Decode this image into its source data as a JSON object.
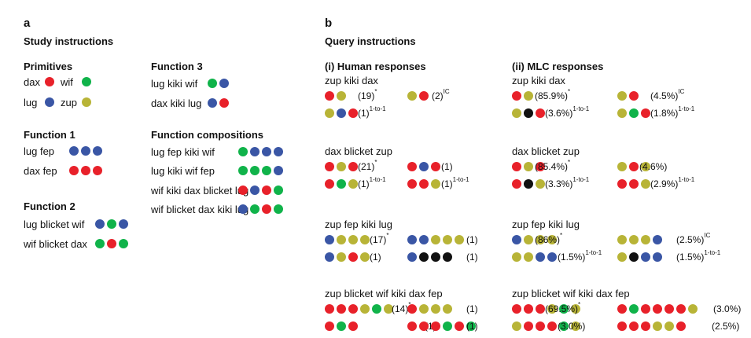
{
  "colors": {
    "red": "#e8212a",
    "green": "#10b34a",
    "blue": "#3a56a5",
    "yellow": "#b8b437",
    "black": "#111111"
  },
  "panel_a": {
    "letter": "a",
    "title": "Study instructions",
    "primitives": {
      "title": "Primitives",
      "items": [
        {
          "word": "dax",
          "color": "red"
        },
        {
          "word": "wif",
          "color": "green"
        },
        {
          "word": "lug",
          "color": "blue"
        },
        {
          "word": "zup",
          "color": "yellow"
        }
      ]
    },
    "function1": {
      "title": "Function 1",
      "rows": [
        {
          "text": "lug fep",
          "dots": [
            "blue",
            "blue",
            "blue"
          ]
        },
        {
          "text": "dax fep",
          "dots": [
            "red",
            "red",
            "red"
          ]
        }
      ]
    },
    "function2": {
      "title": "Function 2",
      "rows": [
        {
          "text": "lug blicket wif",
          "dots": [
            "blue",
            "green",
            "blue"
          ]
        },
        {
          "text": "wif blicket dax",
          "dots": [
            "green",
            "red",
            "green"
          ]
        }
      ]
    },
    "function3": {
      "title": "Function 3",
      "rows": [
        {
          "text": "lug kiki wif",
          "dots": [
            "green",
            "blue"
          ]
        },
        {
          "text": "dax kiki lug",
          "dots": [
            "blue",
            "red"
          ]
        }
      ]
    },
    "compositions": {
      "title": "Function compositions",
      "rows": [
        {
          "text": "lug fep kiki wif",
          "dots": [
            "green",
            "blue",
            "blue",
            "blue"
          ]
        },
        {
          "text": "lug kiki wif fep",
          "dots": [
            "green",
            "green",
            "green",
            "blue"
          ]
        },
        {
          "text": "wif kiki dax blicket lug",
          "dots": [
            "red",
            "blue",
            "red",
            "green"
          ]
        },
        {
          "text": "wif blicket dax kiki lug",
          "dots": [
            "blue",
            "green",
            "red",
            "green"
          ]
        }
      ]
    }
  },
  "panel_b": {
    "letter": "b",
    "title": "Query instructions",
    "human_title": "(i) Human responses",
    "mlc_title": "(ii) MLC responses",
    "queries": [
      {
        "text": "zup kiki dax",
        "human": [
          {
            "dots": [
              "red",
              "yellow"
            ],
            "count": "(19)",
            "sup": "*"
          },
          {
            "dots": [
              "yellow",
              "red"
            ],
            "count": "(2)",
            "sup": "IC"
          },
          {
            "dots": [
              "yellow",
              "blue",
              "red"
            ],
            "count": "(1)",
            "sup": "1-to-1"
          }
        ],
        "mlc": [
          {
            "dots": [
              "red",
              "yellow"
            ],
            "count": "(85.9%)",
            "sup": "*"
          },
          {
            "dots": [
              "yellow",
              "red"
            ],
            "count": "(4.5%)",
            "sup": "IC"
          },
          {
            "dots": [
              "yellow",
              "black",
              "red"
            ],
            "count": "(3.6%)",
            "sup": "1-to-1"
          },
          {
            "dots": [
              "yellow",
              "green",
              "red"
            ],
            "count": "(1.8%)",
            "sup": "1-to-1"
          }
        ]
      },
      {
        "text": "dax blicket zup",
        "human": [
          {
            "dots": [
              "red",
              "yellow",
              "red"
            ],
            "count": "(21)",
            "sup": "*"
          },
          {
            "dots": [
              "red",
              "blue",
              "red"
            ],
            "count": "(1)",
            "sup": ""
          },
          {
            "dots": [
              "red",
              "green",
              "yellow"
            ],
            "count": "(1)",
            "sup": "1-to-1"
          },
          {
            "dots": [
              "red",
              "red",
              "yellow"
            ],
            "count": "(1)",
            "sup": "1-to-1"
          }
        ],
        "mlc": [
          {
            "dots": [
              "red",
              "yellow",
              "red"
            ],
            "count": "(85.4%)",
            "sup": "*"
          },
          {
            "dots": [
              "yellow",
              "red",
              "yellow"
            ],
            "count": "(4.6%)",
            "sup": ""
          },
          {
            "dots": [
              "red",
              "black",
              "yellow"
            ],
            "count": "(3.3%)",
            "sup": "1-to-1"
          },
          {
            "dots": [
              "red",
              "red",
              "yellow"
            ],
            "count": "(2.9%)",
            "sup": "1-to-1"
          }
        ]
      },
      {
        "text": "zup fep kiki lug",
        "human": [
          {
            "dots": [
              "blue",
              "yellow",
              "yellow",
              "yellow"
            ],
            "count": "(17)",
            "sup": "*"
          },
          {
            "dots": [
              "blue",
              "blue",
              "yellow",
              "yellow",
              "yellow"
            ],
            "count": "(1)",
            "sup": ""
          },
          {
            "dots": [
              "blue",
              "yellow",
              "red",
              "yellow"
            ],
            "count": "(1)",
            "sup": ""
          },
          {
            "dots": [
              "blue",
              "black",
              "black",
              "black"
            ],
            "count": "(1)",
            "sup": ""
          }
        ],
        "mlc": [
          {
            "dots": [
              "blue",
              "yellow",
              "yellow",
              "yellow"
            ],
            "count": "(86%)",
            "sup": "*"
          },
          {
            "dots": [
              "yellow",
              "yellow",
              "yellow",
              "blue"
            ],
            "count": "(2.5%)",
            "sup": "IC"
          },
          {
            "dots": [
              "yellow",
              "yellow",
              "blue",
              "blue"
            ],
            "count": "(1.5%)",
            "sup": "1-to-1"
          },
          {
            "dots": [
              "yellow",
              "black",
              "blue",
              "blue"
            ],
            "count": "(1.5%)",
            "sup": "1-to-1"
          }
        ]
      },
      {
        "text": "zup blicket wif kiki dax fep",
        "human": [
          {
            "dots": [
              "red",
              "red",
              "red",
              "yellow",
              "green",
              "yellow"
            ],
            "count": "(14)",
            "sup": "*"
          },
          {
            "dots": [
              "red",
              "yellow",
              "yellow",
              "yellow"
            ],
            "count": "(1)",
            "sup": ""
          },
          {
            "dots": [
              "red",
              "green",
              "red"
            ],
            "count": "(1)",
            "sup": ""
          },
          {
            "dots": [
              "red",
              "red",
              "red",
              "green",
              "red",
              "green"
            ],
            "count": "(1)",
            "sup": ""
          }
        ],
        "mlc": [
          {
            "dots": [
              "red",
              "red",
              "red",
              "yellow",
              "green",
              "yellow"
            ],
            "count": "(69.5%)",
            "sup": "*"
          },
          {
            "dots": [
              "red",
              "green",
              "red",
              "red",
              "red",
              "red",
              "yellow"
            ],
            "count": "(3.0%)",
            "sup": ""
          },
          {
            "dots": [
              "yellow",
              "red",
              "red",
              "red",
              "green",
              "yellow"
            ],
            "count": "(3.0%)",
            "sup": ""
          },
          {
            "dots": [
              "red",
              "red",
              "red",
              "yellow",
              "yellow",
              "red"
            ],
            "count": "(2.5%)",
            "sup": ""
          }
        ]
      }
    ]
  }
}
